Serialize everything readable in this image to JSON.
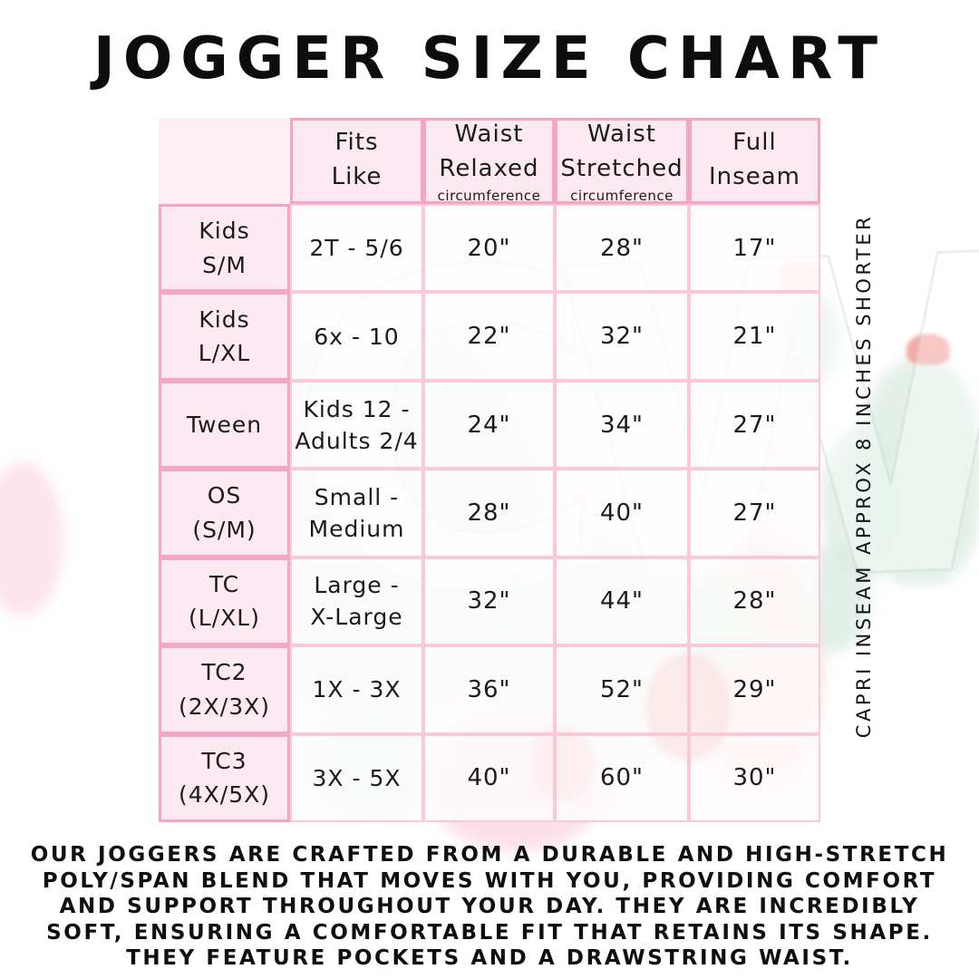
{
  "title": "JOGGER SIZE CHART",
  "watermark": "CW",
  "side_note": "CAPRI INSEAM APPROX 8 INCHES SHORTER",
  "description": "OUR JOGGERS ARE CRAFTED FROM A DURABLE AND HIGH-STRETCH POLY/SPAN BLEND THAT MOVES WITH YOU, PROVIDING COMFORT AND SUPPORT THROUGHOUT YOUR DAY. THEY ARE INCREDIBLY SOFT, ENSURING A COMFORTABLE FIT THAT RETAINS ITS SHAPE. THEY FEATURE POCKETS AND A DRAWSTRING WAIST.",
  "table": {
    "columns": [
      {
        "l1": "Fits",
        "l2": "Like",
        "sub": ""
      },
      {
        "l1": "Waist",
        "l2": "Relaxed",
        "sub": "circumference"
      },
      {
        "l1": "Waist",
        "l2": "Stretched",
        "sub": "circumference"
      },
      {
        "l1": "Full",
        "l2": "Inseam",
        "sub": ""
      }
    ],
    "rows": [
      {
        "label1": "Kids",
        "label2": "S/M",
        "fits1": "2T - 5/6",
        "fits2": "",
        "relaxed": "20\"",
        "stretched": "28\"",
        "inseam": "17\""
      },
      {
        "label1": "Kids",
        "label2": "L/XL",
        "fits1": "6x - 10",
        "fits2": "",
        "relaxed": "22\"",
        "stretched": "32\"",
        "inseam": "21\""
      },
      {
        "label1": "Tween",
        "label2": "",
        "fits1": "Kids 12 -",
        "fits2": "Adults 2/4",
        "relaxed": "24\"",
        "stretched": "34\"",
        "inseam": "27\""
      },
      {
        "label1": "OS",
        "label2": "(S/M)",
        "fits1": "Small -",
        "fits2": "Medium",
        "relaxed": "28\"",
        "stretched": "40\"",
        "inseam": "27\""
      },
      {
        "label1": "TC",
        "label2": "(L/XL)",
        "fits1": "Large -",
        "fits2": "X-Large",
        "relaxed": "32\"",
        "stretched": "44\"",
        "inseam": "28\""
      },
      {
        "label1": "TC2",
        "label2": "(2X/3X)",
        "fits1": "1X - 3X",
        "fits2": "",
        "relaxed": "36\"",
        "stretched": "52\"",
        "inseam": "29\""
      },
      {
        "label1": "TC3",
        "label2": "(4X/5X)",
        "fits1": "3X - 5X",
        "fits2": "",
        "relaxed": "40\"",
        "stretched": "60\"",
        "inseam": "30\""
      }
    ]
  },
  "colors": {
    "border_strong": "#f4a6c3",
    "border_light": "#f9c9da",
    "table_pink": "#fce9f1",
    "base_pink": "#fdf0f5",
    "art_mint": "#e0eee6",
    "art_coral": "#f0928a",
    "art_red": "#e8564e",
    "art_pink": "#fbd9e4",
    "text": "#1b1b1b"
  }
}
